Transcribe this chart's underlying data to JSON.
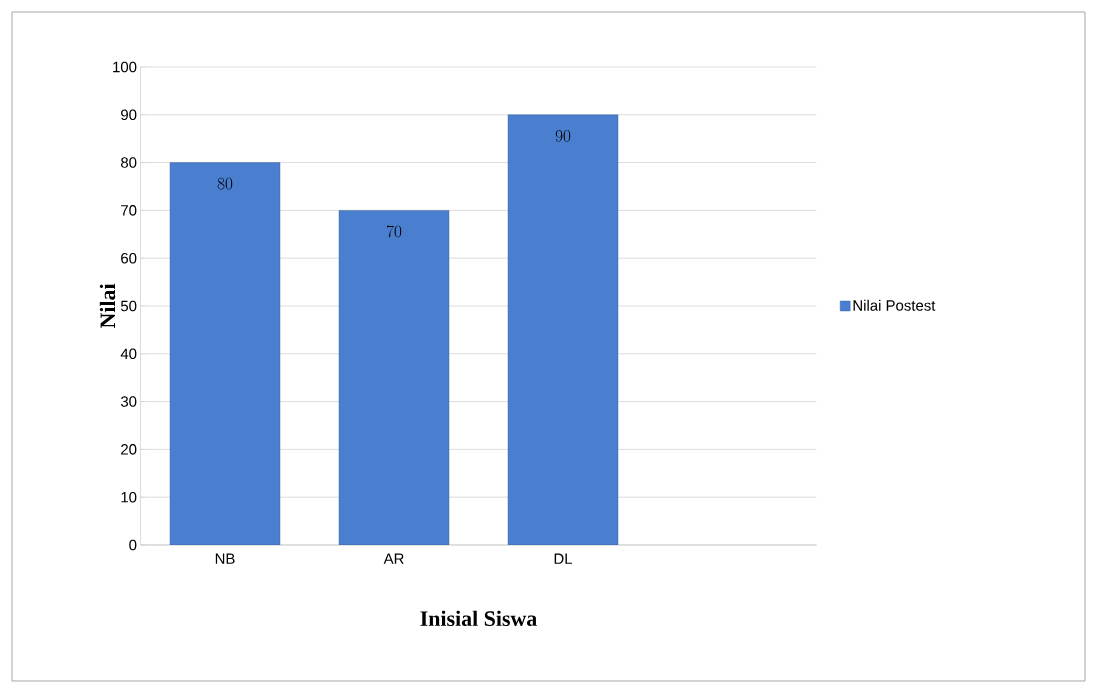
{
  "chart_data": {
    "type": "bar",
    "xlabel": "Inisial Siswa",
    "ylabel": "Nilai",
    "categories": [
      "NB",
      "AR",
      "DL",
      null
    ],
    "series": [
      {
        "name": "Nilai Postest",
        "color": "#4a7fd0",
        "values": [
          80,
          70,
          90,
          null
        ]
      }
    ],
    "ylim": [
      0,
      100
    ],
    "yticks": [
      0,
      10,
      20,
      30,
      40,
      50,
      60,
      70,
      80,
      90,
      100
    ],
    "grid": "y",
    "legend": "right",
    "data_labels": true
  }
}
